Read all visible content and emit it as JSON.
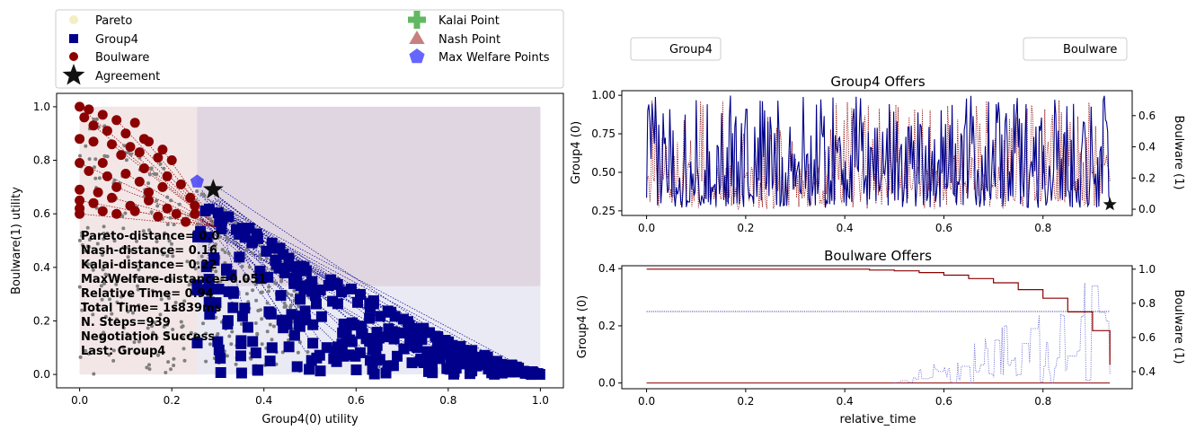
{
  "colors": {
    "group4": "#00008b",
    "boulware": "#8b0000",
    "pareto": "#eee8aa",
    "kalai": "#2ca02c",
    "nash": "#a52a2a",
    "welfare": "#0000ff",
    "agreement": "#111111",
    "scatter_gray": "#808080"
  },
  "chart_data": [
    {
      "type": "scatter",
      "xlabel": "Group4(0) utility",
      "ylabel": "Boulware(1) utility",
      "xlim": [
        -0.05,
        1.05
      ],
      "ylim": [
        -0.05,
        1.05
      ],
      "xticks": [
        "0.0",
        "0.2",
        "0.4",
        "0.6",
        "0.8",
        "1.0"
      ],
      "yticks": [
        "0.0",
        "0.2",
        "0.4",
        "0.6",
        "0.8",
        "1.0"
      ],
      "legend": {
        "placement": "top",
        "entries": [
          {
            "label": "Pareto",
            "marker": "circle",
            "color": "#eee8aa"
          },
          {
            "label": "Group4",
            "marker": "square",
            "color": "#00008b"
          },
          {
            "label": "Boulware",
            "marker": "circle",
            "color": "#8b0000"
          },
          {
            "label": "Agreement",
            "marker": "star",
            "color": "#111111"
          },
          {
            "label": "Kalai Point",
            "marker": "plus",
            "color": "#2ca02c"
          },
          {
            "label": "Nash Point",
            "marker": "triangle",
            "color": "#a52a2a"
          },
          {
            "label": "Max Welfare Points",
            "marker": "pentagon",
            "color": "#0000ff"
          }
        ]
      },
      "agreement": [
        0.29,
        0.69
      ],
      "max_welfare_point": [
        0.255,
        0.72
      ],
      "boulware_offers": [
        [
          0.0,
          1.0
        ],
        [
          0.01,
          0.96
        ],
        [
          0.02,
          0.99
        ],
        [
          0.03,
          0.93
        ],
        [
          0.05,
          0.97
        ],
        [
          0.06,
          0.91
        ],
        [
          0.08,
          0.95
        ],
        [
          0.1,
          0.9
        ],
        [
          0.12,
          0.94
        ],
        [
          0.14,
          0.88
        ],
        [
          0.0,
          0.88
        ],
        [
          0.03,
          0.87
        ],
        [
          0.07,
          0.86
        ],
        [
          0.11,
          0.85
        ],
        [
          0.15,
          0.87
        ],
        [
          0.18,
          0.84
        ],
        [
          0.2,
          0.8
        ],
        [
          0.17,
          0.81
        ],
        [
          0.13,
          0.83
        ],
        [
          0.09,
          0.82
        ],
        [
          0.05,
          0.79
        ],
        [
          0.0,
          0.79
        ],
        [
          0.02,
          0.76
        ],
        [
          0.06,
          0.74
        ],
        [
          0.1,
          0.75
        ],
        [
          0.14,
          0.77
        ],
        [
          0.19,
          0.74
        ],
        [
          0.22,
          0.71
        ],
        [
          0.18,
          0.7
        ],
        [
          0.13,
          0.72
        ],
        [
          0.08,
          0.7
        ],
        [
          0.04,
          0.68
        ],
        [
          0.0,
          0.69
        ],
        [
          0.0,
          0.65
        ],
        [
          0.0,
          0.62
        ],
        [
          0.03,
          0.64
        ],
        [
          0.07,
          0.66
        ],
        [
          0.11,
          0.63
        ],
        [
          0.15,
          0.65
        ],
        [
          0.19,
          0.62
        ],
        [
          0.21,
          0.6
        ],
        [
          0.17,
          0.59
        ],
        [
          0.12,
          0.61
        ],
        [
          0.08,
          0.6
        ],
        [
          0.05,
          0.61
        ],
        [
          0.0,
          0.6
        ],
        [
          0.24,
          0.66
        ],
        [
          0.25,
          0.63
        ],
        [
          0.23,
          0.57
        ],
        [
          0.15,
          0.68
        ],
        [
          0.25,
          0.6
        ]
      ],
      "group4_boundary": [
        [
          0.255,
          0.74
        ],
        [
          0.3,
          0.64
        ],
        [
          0.4,
          0.52
        ],
        [
          0.5,
          0.42
        ],
        [
          0.6,
          0.32
        ],
        [
          0.7,
          0.22
        ],
        [
          0.8,
          0.13
        ],
        [
          0.9,
          0.06
        ],
        [
          0.95,
          0.03
        ],
        [
          1.0,
          0.0
        ]
      ],
      "annotation_lines": [
        "Pareto-distance= 0.0",
        "Nash-distance= 0.16",
        "Kalai-distance= 0.22",
        "MaxWelfare-distance=0.051",
        "Relative Time= 0.94",
        "Total Time= 1s839ms",
        "N. Steps=939",
        "Negotiation Success",
        "Last: Group4"
      ]
    },
    {
      "type": "line",
      "title": "Group4 Offers",
      "xlabel": "",
      "ylabel": "Group4 (0)",
      "ylabel_right": "Boulware (1)",
      "xlim": [
        -0.05,
        0.98
      ],
      "ylim": [
        0.22,
        1.03
      ],
      "ylim_right": [
        -0.04,
        0.76
      ],
      "xticks": [
        "0.0",
        "0.2",
        "0.4",
        "0.6",
        "0.8"
      ],
      "yticks": [
        "0.25",
        "0.50",
        "0.75",
        "1.00"
      ],
      "yticks_right": [
        "0.0",
        "0.2",
        "0.4",
        "0.6"
      ],
      "legend": {
        "left": "Group4",
        "right": "Boulware"
      },
      "agreement": [
        0.935,
        0.03
      ]
    },
    {
      "type": "line",
      "title": "Boulware Offers",
      "xlabel": "relative_time",
      "ylabel": "Group4 (0)",
      "ylabel_right": "Boulware (1)",
      "xlim": [
        -0.05,
        0.98
      ],
      "ylim": [
        -0.02,
        0.41
      ],
      "ylim_right": [
        0.3,
        1.02
      ],
      "xticks": [
        "0.0",
        "0.2",
        "0.4",
        "0.6",
        "0.8"
      ],
      "yticks": [
        "0.0",
        "0.2",
        "0.4"
      ],
      "yticks_right": [
        "0.4",
        "0.6",
        "0.8",
        "1.0"
      ],
      "boulware_own": [
        [
          0.0,
          1.0
        ],
        [
          0.4,
          1.0
        ],
        [
          0.45,
          0.995
        ],
        [
          0.5,
          0.99
        ],
        [
          0.55,
          0.98
        ],
        [
          0.6,
          0.965
        ],
        [
          0.65,
          0.945
        ],
        [
          0.7,
          0.92
        ],
        [
          0.75,
          0.88
        ],
        [
          0.8,
          0.83
        ],
        [
          0.85,
          0.75
        ],
        [
          0.9,
          0.64
        ],
        [
          0.935,
          0.44
        ]
      ],
      "group4_flat": 0.25,
      "boulware_low": 0.0
    }
  ]
}
